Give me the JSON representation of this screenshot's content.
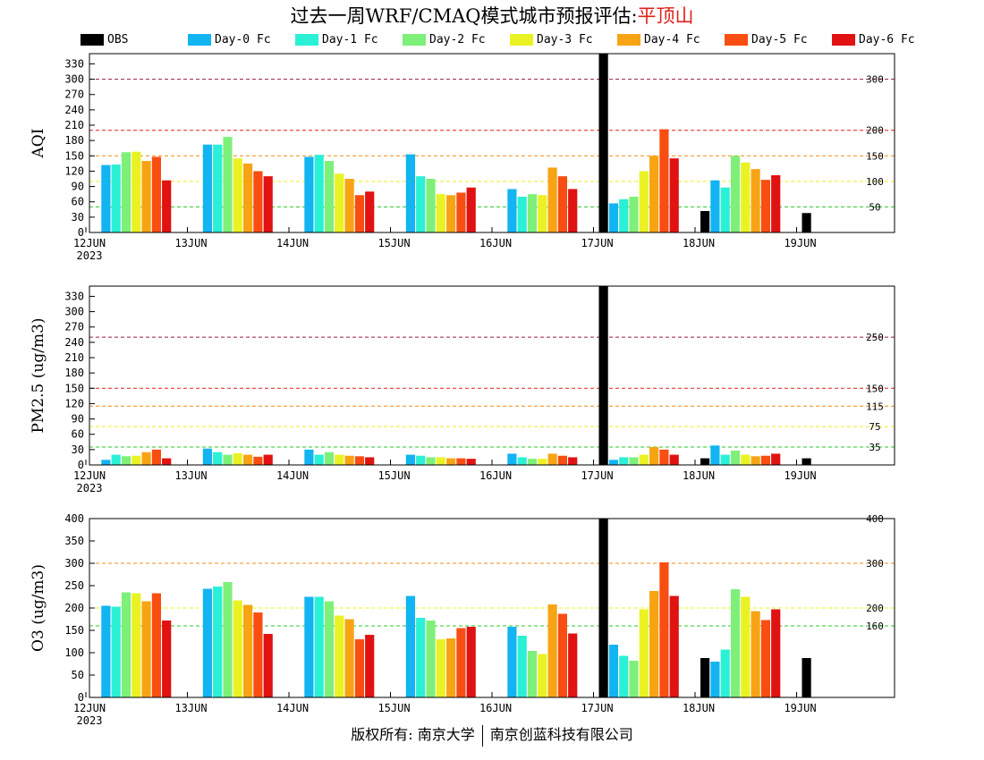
{
  "title_prefix": "过去一周WRF/CMAQ模式城市预报评估:",
  "station": "平顶山",
  "footer": {
    "left": "版权所有: 南京大学",
    "right": "南京创蓝科技有限公司"
  },
  "legend": [
    {
      "name": "OBS",
      "color": "#000000"
    },
    {
      "name": "Day-0 Fc",
      "color": "#12b4f2"
    },
    {
      "name": "Day-1 Fc",
      "color": "#2af0d6"
    },
    {
      "name": "Day-2 Fc",
      "color": "#7ef07a"
    },
    {
      "name": "Day-3 Fc",
      "color": "#eaf224"
    },
    {
      "name": "Day-4 Fc",
      "color": "#f7a414"
    },
    {
      "name": "Day-5 Fc",
      "color": "#f84e12"
    },
    {
      "name": "Day-6 Fc",
      "color": "#e01212"
    }
  ],
  "chart_data": [
    {
      "type": "bar",
      "ylabel": "AQI",
      "ylim": [
        0,
        350
      ],
      "yticks": [
        0,
        30,
        60,
        90,
        120,
        150,
        180,
        210,
        240,
        270,
        300,
        330
      ],
      "categories": [
        "12JUN",
        "13JUN",
        "14JUN",
        "15JUN",
        "16JUN",
        "17JUN",
        "18JUN",
        "19JUN"
      ],
      "year_label": "2023",
      "thresholds": [
        {
          "value": 300,
          "color": "#9a1a3a",
          "label": "300"
        },
        {
          "value": 200,
          "color": "#e0201a",
          "label": "200"
        },
        {
          "value": 150,
          "color": "#f08a14",
          "label": "150"
        },
        {
          "value": 100,
          "color": "#f0f018",
          "label": "100"
        },
        {
          "value": 50,
          "color": "#28c828",
          "label": "50"
        }
      ],
      "series": [
        {
          "name": "OBS",
          "values": [
            null,
            null,
            null,
            null,
            null,
            350,
            42,
            38
          ]
        },
        {
          "name": "Day-0 Fc",
          "values": [
            132,
            172,
            148,
            153,
            85,
            57,
            102,
            null
          ]
        },
        {
          "name": "Day-1 Fc",
          "values": [
            133,
            172,
            152,
            110,
            70,
            65,
            88,
            null
          ]
        },
        {
          "name": "Day-2 Fc",
          "values": [
            157,
            187,
            140,
            105,
            75,
            70,
            150,
            null
          ]
        },
        {
          "name": "Day-3 Fc",
          "values": [
            158,
            145,
            115,
            75,
            73,
            120,
            137,
            null
          ]
        },
        {
          "name": "Day-4 Fc",
          "values": [
            140,
            135,
            105,
            73,
            127,
            150,
            124,
            null
          ]
        },
        {
          "name": "Day-5 Fc",
          "values": [
            148,
            120,
            73,
            78,
            110,
            202,
            103,
            null
          ]
        },
        {
          "name": "Day-6 Fc",
          "values": [
            102,
            110,
            80,
            88,
            85,
            145,
            112,
            null
          ]
        }
      ]
    },
    {
      "type": "bar",
      "ylabel": "PM2.5 (ug/m3)",
      "ylim": [
        0,
        350
      ],
      "yticks": [
        0,
        30,
        60,
        90,
        120,
        150,
        180,
        210,
        240,
        270,
        300,
        330
      ],
      "categories": [
        "12JUN",
        "13JUN",
        "14JUN",
        "15JUN",
        "16JUN",
        "17JUN",
        "18JUN",
        "19JUN"
      ],
      "year_label": "2023",
      "thresholds": [
        {
          "value": 250,
          "color": "#9a1a3a",
          "label": "250"
        },
        {
          "value": 150,
          "color": "#e0201a",
          "label": "150"
        },
        {
          "value": 115,
          "color": "#f08a14",
          "label": "115"
        },
        {
          "value": 75,
          "color": "#f0f018",
          "label": "75"
        },
        {
          "value": 35,
          "color": "#28c828",
          "label": "35"
        }
      ],
      "series": [
        {
          "name": "OBS",
          "values": [
            null,
            null,
            null,
            null,
            null,
            350,
            13,
            13
          ]
        },
        {
          "name": "Day-0 Fc",
          "values": [
            10,
            32,
            30,
            20,
            22,
            10,
            38,
            null
          ]
        },
        {
          "name": "Day-1 Fc",
          "values": [
            20,
            25,
            20,
            18,
            15,
            15,
            20,
            null
          ]
        },
        {
          "name": "Day-2 Fc",
          "values": [
            17,
            20,
            25,
            15,
            12,
            15,
            28,
            null
          ]
        },
        {
          "name": "Day-3 Fc",
          "values": [
            18,
            23,
            20,
            15,
            12,
            20,
            20,
            null
          ]
        },
        {
          "name": "Day-4 Fc",
          "values": [
            25,
            20,
            18,
            13,
            22,
            35,
            17,
            null
          ]
        },
        {
          "name": "Day-5 Fc",
          "values": [
            30,
            16,
            17,
            13,
            18,
            30,
            18,
            null
          ]
        },
        {
          "name": "Day-6 Fc",
          "values": [
            13,
            20,
            15,
            12,
            15,
            20,
            22,
            null
          ]
        }
      ]
    },
    {
      "type": "bar",
      "ylabel": "O3 (ug/m3)",
      "ylim": [
        0,
        400
      ],
      "yticks": [
        0,
        50,
        100,
        150,
        200,
        250,
        300,
        350,
        400
      ],
      "categories": [
        "12JUN",
        "13JUN",
        "14JUN",
        "15JUN",
        "16JUN",
        "17JUN",
        "18JUN",
        "19JUN"
      ],
      "year_label": "2023",
      "thresholds": [
        {
          "value": 400,
          "color": "#e0201a",
          "label": "400"
        },
        {
          "value": 300,
          "color": "#f08a14",
          "label": "300"
        },
        {
          "value": 200,
          "color": "#f0f018",
          "label": "200"
        },
        {
          "value": 160,
          "color": "#28c828",
          "label": "160"
        }
      ],
      "series": [
        {
          "name": "OBS",
          "values": [
            null,
            null,
            null,
            null,
            null,
            400,
            88,
            88
          ]
        },
        {
          "name": "Day-0 Fc",
          "values": [
            205,
            243,
            225,
            227,
            158,
            118,
            80,
            null
          ]
        },
        {
          "name": "Day-1 Fc",
          "values": [
            203,
            248,
            225,
            178,
            138,
            93,
            107,
            null
          ]
        },
        {
          "name": "Day-2 Fc",
          "values": [
            235,
            258,
            215,
            172,
            104,
            82,
            242,
            null
          ]
        },
        {
          "name": "Day-3 Fc",
          "values": [
            233,
            217,
            183,
            130,
            97,
            197,
            225,
            null
          ]
        },
        {
          "name": "Day-4 Fc",
          "values": [
            215,
            207,
            175,
            132,
            208,
            238,
            193,
            null
          ]
        },
        {
          "name": "Day-5 Fc",
          "values": [
            233,
            190,
            130,
            155,
            187,
            302,
            173,
            null
          ]
        },
        {
          "name": "Day-6 Fc",
          "values": [
            172,
            142,
            140,
            158,
            143,
            227,
            197,
            null
          ]
        }
      ]
    }
  ]
}
